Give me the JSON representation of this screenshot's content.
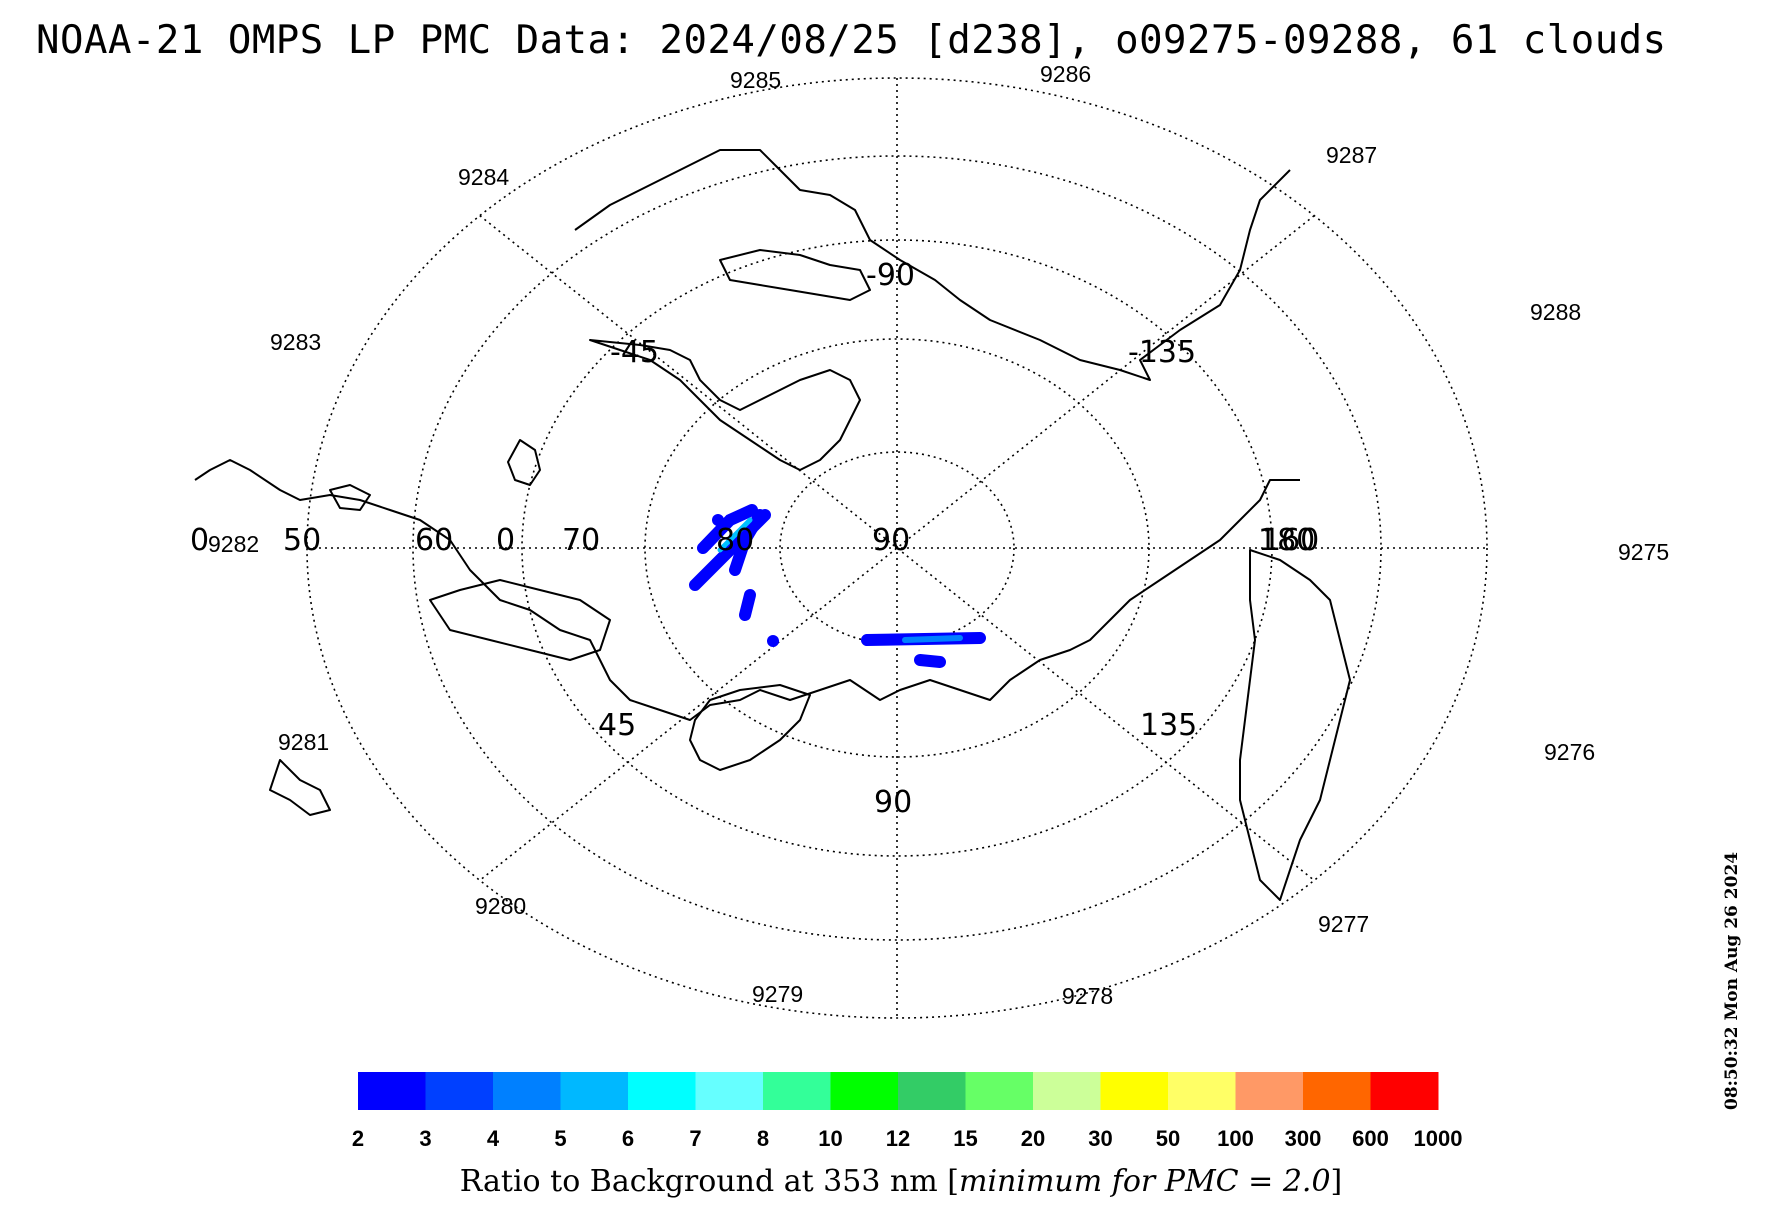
{
  "title": "NOAA-21 OMPS LP PMC Data: 2024/08/25 [d238], o09275-09288, 61 clouds",
  "timestamp": "08:50:32 Mon Aug 26 2024",
  "map": {
    "projection": "polar-stereographic-north",
    "orbit_labels": [
      "9275",
      "9276",
      "9277",
      "9278",
      "9279",
      "9280",
      "9281",
      "9282",
      "9283",
      "9284",
      "9285",
      "9286",
      "9287",
      "9288"
    ],
    "longitude_labels": [
      "-90",
      "-45",
      "-135",
      "0",
      "180",
      "45",
      "135",
      "90"
    ],
    "latitude_labels": [
      "50",
      "60",
      "0",
      "70",
      "80",
      "90",
      "160",
      "0"
    ],
    "pmc_color_low": "#0000ff",
    "pmc_color_mid": "#0080ff",
    "pmc_color_high": "#00c0ff"
  },
  "colorbar": {
    "ticks": [
      "2",
      "3",
      "4",
      "5",
      "6",
      "7",
      "8",
      "10",
      "12",
      "15",
      "20",
      "30",
      "50",
      "100",
      "300",
      "600",
      "1000"
    ],
    "colors": [
      "#0000ff",
      "#0040ff",
      "#0080ff",
      "#00b8ff",
      "#00ffff",
      "#66ffff",
      "#33ff99",
      "#00ff00",
      "#33cc66",
      "#66ff66",
      "#ccff99",
      "#ffff00",
      "#ffff66",
      "#ff9966",
      "#ff6600",
      "#ff0000"
    ],
    "label_main": "Ratio to Background at 353 nm ",
    "label_bracket_open": "[",
    "label_italic": "minimum for PMC = 2.0",
    "label_bracket_close": "]"
  }
}
